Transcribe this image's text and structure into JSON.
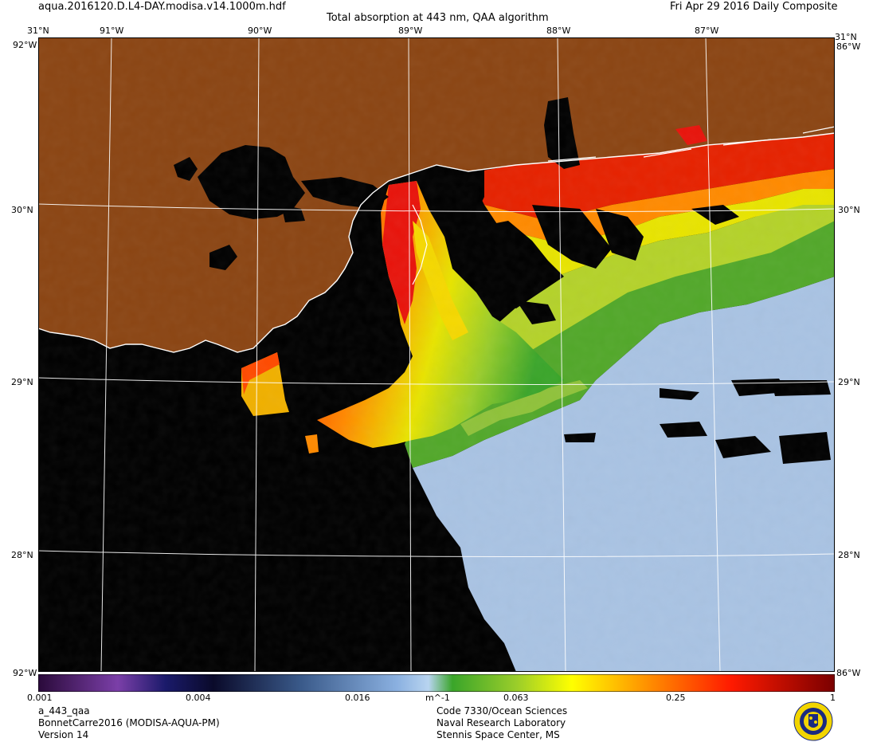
{
  "header": {
    "filename": "aqua.2016120.D.L4-DAY.modisa.v14.1000m.hdf",
    "title": "Total absorption at 443 nm, QAA algorithm",
    "date": "Fri Apr 29 2016 Daily Composite"
  },
  "map": {
    "lon_labels": [
      "91°W",
      "90°W",
      "89°W",
      "88°W",
      "87°W"
    ],
    "lat_labels": [
      "30°N",
      "29°N",
      "28°N"
    ],
    "corner_top": "31°N",
    "corner_lon_left": "92°W",
    "corner_lon_right": "86°W",
    "corner_bottom": "31°N",
    "colors": {
      "land": "#8B4513",
      "nodata": "#000000",
      "coast": "#ffffff",
      "grid": "#ffffff",
      "clear_water": "#a9c3e3"
    }
  },
  "colorbar": {
    "ticks": [
      "0.001",
      "0.004",
      "0.016",
      "m^-1",
      "0.063",
      "0.25",
      "1"
    ],
    "scale": "log"
  },
  "footer": {
    "product": "a_443_qaa",
    "campaign": "BonnetCarre2016 (MODISA-AQUA-PM)",
    "version": "Version 14",
    "org_line1": "Code 7330/Ocean Sciences",
    "org_line2": "Naval Research Laboratory",
    "org_line3": "Stennis Space Center, MS",
    "seal_icon": "nrl-seal-icon"
  }
}
